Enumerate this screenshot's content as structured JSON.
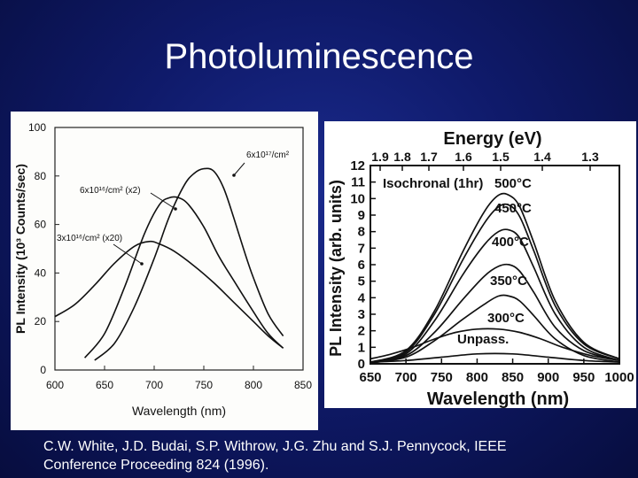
{
  "slide": {
    "title": "Photoluminescence",
    "citation_line1": "C.W. White, J.D. Budai, S.P. Withrow, J.G. Zhu and S.J. Pennycock, IEEE",
    "citation_line2": "Conference Proceeding 824 (1996)."
  },
  "chart_data": [
    {
      "type": "line",
      "xlabel": "Wavelength (nm)",
      "ylabel": "PL Intensity (10³ Counts/sec)",
      "xlim": [
        600,
        850
      ],
      "ylim": [
        0,
        100
      ],
      "x_ticks": [
        "600",
        "650",
        "700",
        "750",
        "800",
        "850"
      ],
      "y_ticks": [
        "0",
        "20",
        "40",
        "60",
        "80",
        "100"
      ],
      "grid": false,
      "series": [
        {
          "name": "6x10¹⁷/cm²",
          "x": [
            640,
            660,
            680,
            700,
            715,
            730,
            740,
            750,
            760,
            770,
            780,
            790,
            800,
            815,
            830
          ],
          "values": [
            4,
            11,
            26,
            46,
            63,
            76,
            81,
            83,
            82,
            75,
            63,
            50,
            38,
            23,
            14
          ]
        },
        {
          "name": "6x10¹⁶/cm² (x2)",
          "x": [
            630,
            650,
            670,
            690,
            705,
            715,
            725,
            735,
            750,
            765,
            780,
            800,
            815,
            830
          ],
          "values": [
            5,
            15,
            34,
            56,
            68,
            71,
            71,
            68,
            59,
            47,
            37,
            24,
            15,
            9
          ]
        },
        {
          "name": "3x10¹⁶/cm² (x20)",
          "x": [
            600,
            620,
            640,
            660,
            680,
            695,
            705,
            720,
            740,
            760,
            780,
            800,
            815,
            830
          ],
          "values": [
            22,
            27,
            35,
            44,
            51,
            53,
            52,
            49,
            43,
            36,
            28,
            20,
            14,
            9
          ]
        }
      ]
    },
    {
      "type": "line",
      "title": "Energy (eV)",
      "xlabel": "Wavelength (nm)",
      "ylabel": "PL Intensity (arb. units)",
      "xlim": [
        650,
        1000
      ],
      "ylim": [
        0,
        12
      ],
      "x_ticks": [
        "650",
        "700",
        "750",
        "800",
        "850",
        "900",
        "950",
        "1000"
      ],
      "y_ticks": [
        "0",
        "1",
        "2",
        "3",
        "4",
        "5",
        "6",
        "7",
        "8",
        "9",
        "10",
        "11",
        "12"
      ],
      "top_ticks": [
        "1.9",
        "1.8",
        "1.7",
        "1.6",
        "1.5",
        "1.4",
        "1.3"
      ],
      "grid": false,
      "annotation": "Isochronal (1hr)",
      "series": [
        {
          "name": "500°C",
          "x": [
            650,
            700,
            740,
            780,
            810,
            830,
            845,
            860,
            880,
            910,
            950,
            1000
          ],
          "values": [
            0.1,
            0.8,
            3.2,
            6.8,
            9.2,
            10.2,
            10.2,
            9.5,
            7.3,
            3.8,
            1.3,
            0.3
          ]
        },
        {
          "name": "450°C",
          "x": [
            650,
            700,
            740,
            780,
            810,
            830,
            845,
            860,
            880,
            910,
            950,
            1000
          ],
          "values": [
            0.1,
            0.7,
            3.0,
            6.3,
            8.5,
            9.5,
            9.6,
            8.9,
            6.8,
            3.5,
            1.2,
            0.3
          ]
        },
        {
          "name": "400°C",
          "x": [
            650,
            700,
            740,
            780,
            810,
            830,
            845,
            860,
            880,
            910,
            950,
            1000
          ],
          "values": [
            0.1,
            0.6,
            2.6,
            5.4,
            7.2,
            8.0,
            8.1,
            7.6,
            5.8,
            3.0,
            1.0,
            0.2
          ]
        },
        {
          "name": "350°C",
          "x": [
            650,
            700,
            740,
            780,
            810,
            830,
            845,
            860,
            880,
            910,
            950,
            1000
          ],
          "values": [
            0.1,
            0.5,
            1.9,
            3.9,
            5.3,
            5.9,
            6.0,
            5.6,
            4.3,
            2.2,
            0.8,
            0.2
          ]
        },
        {
          "name": "300°C",
          "x": [
            650,
            700,
            740,
            780,
            810,
            830,
            845,
            860,
            880,
            910,
            950,
            1000
          ],
          "values": [
            0.05,
            0.4,
            1.4,
            2.7,
            3.6,
            4.1,
            4.1,
            3.8,
            2.9,
            1.5,
            0.5,
            0.1
          ]
        },
        {
          "name": "Unpass.",
          "x": [
            650,
            680,
            710,
            740,
            770,
            800,
            830,
            860,
            890,
            920,
            960,
            1000
          ],
          "values": [
            0.3,
            0.6,
            1.0,
            1.5,
            1.9,
            2.1,
            2.1,
            1.9,
            1.5,
            1.0,
            0.5,
            0.2
          ]
        },
        {
          "name": "",
          "x": [
            650,
            700,
            750,
            800,
            850,
            900,
            950,
            1000
          ],
          "values": [
            0.1,
            0.2,
            0.4,
            0.6,
            0.6,
            0.4,
            0.2,
            0.1
          ]
        }
      ]
    }
  ]
}
